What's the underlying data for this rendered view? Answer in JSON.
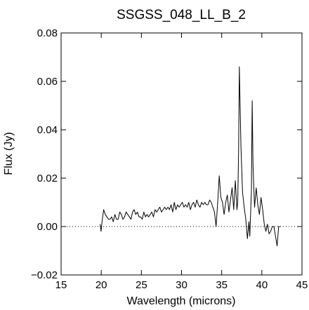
{
  "chart_data": {
    "type": "line",
    "title": "SSGSS_048_LL_B_2",
    "xlabel": "Wavelength (microns)",
    "ylabel": "Flux (Jy)",
    "xlim": [
      15,
      45
    ],
    "ylim": [
      -0.02,
      0.08
    ],
    "xticks": [
      15,
      20,
      25,
      30,
      35,
      40,
      45
    ],
    "xtick_labels": [
      "15",
      "20",
      "25",
      "30",
      "35",
      "40",
      "45"
    ],
    "yticks": [
      -0.02,
      0.0,
      0.02,
      0.04,
      0.06,
      0.08
    ],
    "ytick_labels": [
      "−0.02",
      "0.00",
      "0.02",
      "0.04",
      "0.06",
      "0.08"
    ],
    "zero_line": {
      "y": 0.0,
      "style": "dotted"
    },
    "grid": false,
    "line_color": "#000000",
    "series": [
      {
        "x": [
          19.85,
          19.98,
          20.1,
          20.3,
          20.5,
          20.7,
          20.9,
          21.1,
          21.3,
          21.5,
          21.7,
          21.9,
          22.1,
          22.3,
          22.5,
          22.7,
          22.9,
          23.1,
          23.3,
          23.5,
          23.7,
          23.9,
          24.1,
          24.3,
          24.5,
          24.7,
          24.9,
          25.1,
          25.3,
          25.5,
          25.7,
          25.9,
          26.1,
          26.3,
          26.5,
          26.7,
          26.9,
          27.1,
          27.3,
          27.5,
          27.7,
          27.9,
          28.1,
          28.3,
          28.5,
          28.7,
          28.9,
          29.1,
          29.3,
          29.5,
          29.7,
          29.9,
          30.1,
          30.3,
          30.5,
          30.7,
          30.9,
          31.1,
          31.3,
          31.5,
          31.7,
          31.9,
          32.1,
          32.3,
          32.5,
          32.7,
          32.9,
          33.1,
          33.3,
          33.5,
          33.7,
          33.9,
          34.1,
          34.3,
          34.5,
          34.7,
          34.9,
          35.1,
          35.3,
          35.5,
          35.7,
          35.9,
          36.1,
          36.3,
          36.5,
          36.7,
          36.9,
          37.0,
          37.1,
          37.2,
          37.4,
          37.6,
          37.8,
          38.0,
          38.2,
          38.4,
          38.5,
          38.6,
          38.7,
          38.8,
          38.9,
          39.0,
          39.1,
          39.3,
          39.5,
          39.7,
          39.9,
          40.1,
          40.3,
          40.5,
          40.7,
          40.9,
          41.1,
          41.3,
          41.5,
          41.7,
          41.9,
          42.1,
          42.25
        ],
        "y": [
          0.001,
          -0.002,
          0.002,
          0.007,
          0.005,
          0.004,
          0.003,
          0.003,
          0.004,
          0.002,
          0.005,
          0.003,
          0.003,
          0.006,
          0.005,
          0.003,
          0.004,
          0.006,
          0.005,
          0.004,
          0.003,
          0.006,
          0.007,
          0.005,
          0.006,
          0.004,
          0.004,
          0.003,
          0.006,
          0.004,
          0.005,
          0.004,
          0.005,
          0.006,
          0.004,
          0.007,
          0.006,
          0.007,
          0.008,
          0.006,
          0.007,
          0.008,
          0.007,
          0.008,
          0.007,
          0.009,
          0.006,
          0.01,
          0.007,
          0.009,
          0.008,
          0.009,
          0.01,
          0.008,
          0.009,
          0.008,
          0.01,
          0.007,
          0.009,
          0.01,
          0.008,
          0.011,
          0.009,
          0.008,
          0.01,
          0.009,
          0.01,
          0.009,
          0.009,
          0.011,
          0.01,
          0.008,
          0.006,
          0.0,
          0.01,
          0.021,
          0.012,
          0.01,
          0.005,
          0.01,
          0.013,
          0.006,
          0.011,
          0.016,
          0.007,
          0.019,
          0.007,
          0.01,
          0.03,
          0.066,
          0.033,
          0.014,
          0.008,
          0.003,
          -0.005,
          0.002,
          -0.004,
          0.005,
          0.015,
          0.052,
          0.025,
          0.016,
          0.008,
          0.016,
          0.009,
          0.005,
          0.012,
          0.007,
          0.001,
          -0.002,
          0.001,
          -0.003,
          -0.002,
          0.0,
          0.0,
          -0.004,
          -0.008,
          0.0,
          0.0
        ]
      }
    ]
  }
}
